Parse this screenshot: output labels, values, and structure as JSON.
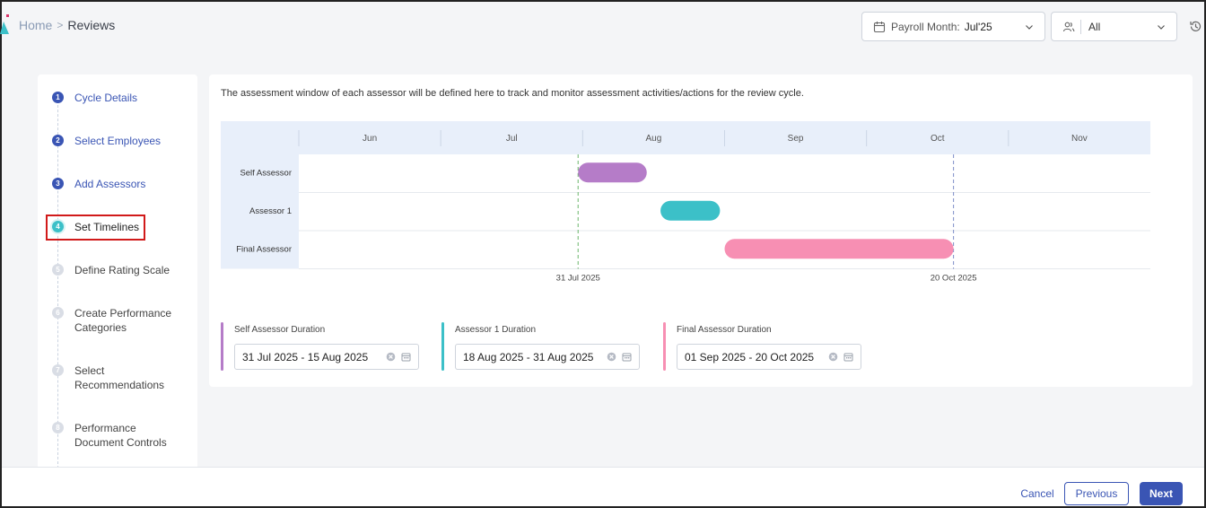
{
  "breadcrumb": {
    "home": "Home",
    "separator": ">",
    "current": "Reviews"
  },
  "header": {
    "payroll_label": "Payroll Month:",
    "payroll_value": "Jul'25",
    "filter_value": "All"
  },
  "steps": [
    {
      "num": "1",
      "label": "Cycle Details",
      "state": "done"
    },
    {
      "num": "2",
      "label": "Select Employees",
      "state": "done"
    },
    {
      "num": "3",
      "label": "Add Assessors",
      "state": "done"
    },
    {
      "num": "4",
      "label": "Set Timelines",
      "state": "current"
    },
    {
      "num": "5",
      "label": "Define Rating Scale",
      "state": "todo"
    },
    {
      "num": "6",
      "label": "Create Performance Categories",
      "state": "todo"
    },
    {
      "num": "7",
      "label": "Select Recommendations",
      "state": "todo"
    },
    {
      "num": "8",
      "label": "Performance Document Controls",
      "state": "todo"
    }
  ],
  "description": "The assessment window of each assessor will be defined here to track and monitor assessment activities/actions for the review cycle.",
  "chart_data": {
    "type": "gantt",
    "months": [
      "Jun",
      "Jul",
      "Aug",
      "Sep",
      "Oct",
      "Nov"
    ],
    "rows": [
      {
        "name": "Self Assessor",
        "start": "2025-07-31",
        "end": "2025-08-15",
        "color": "#b57cc8"
      },
      {
        "name": "Assessor 1",
        "start": "2025-08-18",
        "end": "2025-08-31",
        "color": "#3cc0c8"
      },
      {
        "name": "Final Assessor",
        "start": "2025-09-01",
        "end": "2025-10-20",
        "color": "#f78fb3"
      }
    ],
    "markers": [
      {
        "date": "2025-07-31",
        "label": "31 Jul 2025",
        "color": "#6bb56b"
      },
      {
        "date": "2025-10-20",
        "label": "20 Oct 2025",
        "color": "#7f8fc9"
      }
    ]
  },
  "durations": [
    {
      "title": "Self Assessor Duration",
      "value": "31 Jul 2025 - 15 Aug 2025",
      "color": "#b57cc8"
    },
    {
      "title": "Assessor 1 Duration",
      "value": "18 Aug 2025 - 31 Aug 2025",
      "color": "#3cc0c8"
    },
    {
      "title": "Final Assessor Duration",
      "value": "01 Sep 2025 - 20 Oct 2025",
      "color": "#f78fb3"
    }
  ],
  "footer": {
    "cancel": "Cancel",
    "previous": "Previous",
    "next": "Next"
  }
}
